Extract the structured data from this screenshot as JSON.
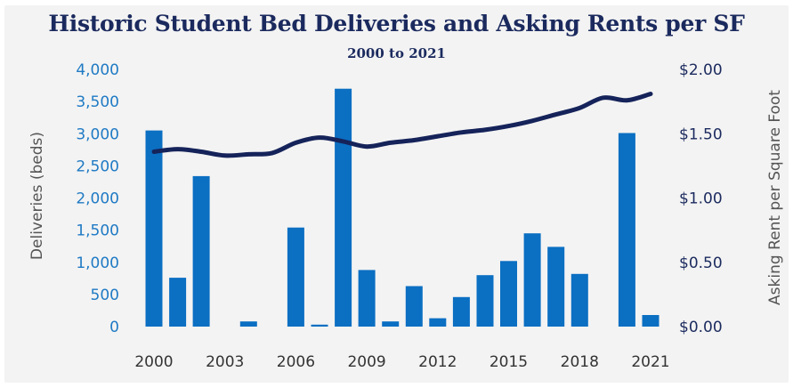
{
  "chart_data": {
    "type": "bar",
    "title": "Historic Student Bed Deliveries and Asking Rents per SF",
    "subtitle": "2000 to 2021",
    "x": [
      2000,
      2001,
      2002,
      2003,
      2004,
      2005,
      2006,
      2007,
      2008,
      2009,
      2010,
      2011,
      2012,
      2013,
      2014,
      2015,
      2016,
      2017,
      2018,
      2019,
      2020,
      2021
    ],
    "x_tick_labels": [
      "2000",
      "2003",
      "2006",
      "2009",
      "2012",
      "2015",
      "2018",
      "2021"
    ],
    "ylabel_left": "Deliveries (beds)",
    "ylabel_right": "Asking Rent per Square Foot",
    "ylim_left": [
      0,
      4000
    ],
    "ylim_right": [
      0,
      2.0
    ],
    "y_left_ticks": [
      "0",
      "500",
      "1,000",
      "1,500",
      "2,000",
      "2,500",
      "3,000",
      "3,500",
      "4,000"
    ],
    "y_right_ticks": [
      "$0.00",
      "$0.50",
      "$1.00",
      "$1.50",
      "$2.00"
    ],
    "series": [
      {
        "type": "bar",
        "axis": "left",
        "color": "#0b6fc2",
        "values": [
          3050,
          760,
          2340,
          0,
          80,
          0,
          1540,
          30,
          3700,
          880,
          80,
          630,
          130,
          460,
          800,
          1020,
          1450,
          1240,
          820,
          0,
          3010,
          180
        ]
      },
      {
        "type": "line",
        "axis": "right",
        "color": "#15235a",
        "values": [
          1.36,
          1.38,
          1.36,
          1.33,
          1.34,
          1.35,
          1.43,
          1.47,
          1.44,
          1.4,
          1.43,
          1.45,
          1.48,
          1.51,
          1.53,
          1.56,
          1.6,
          1.65,
          1.7,
          1.78,
          1.76,
          1.81
        ]
      }
    ],
    "grid": false,
    "legend": "none"
  }
}
